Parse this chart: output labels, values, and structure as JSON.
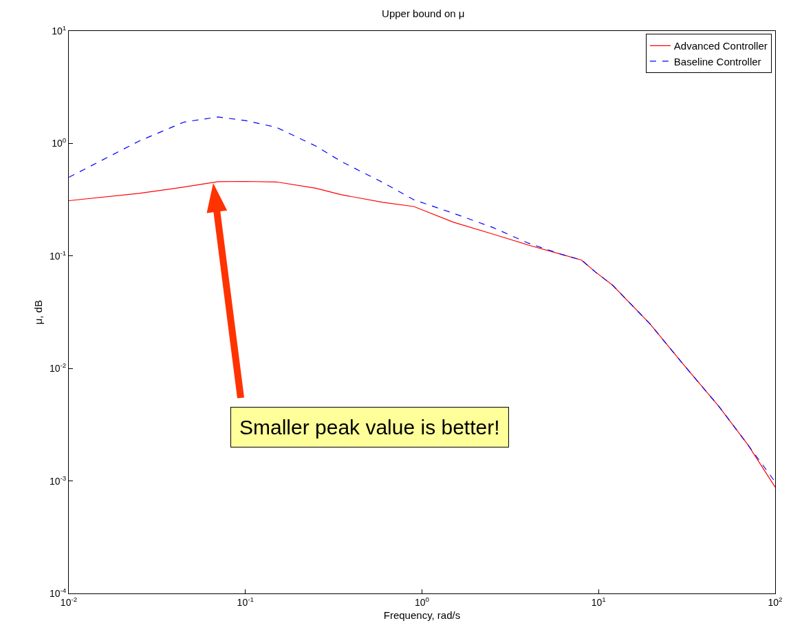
{
  "chart_data": {
    "type": "line",
    "title": "Upper bound on μ",
    "xlabel": "Frequency, rad/s",
    "ylabel": "μ, dB",
    "log": "xy",
    "grid": false,
    "legend": "top right",
    "marker": "none",
    "xlim": [
      0.01,
      100
    ],
    "ylim": [
      0.0001,
      10
    ],
    "xticks": [
      {
        "value": 0.01,
        "label": "10$^{-2}$"
      },
      {
        "value": 0.1,
        "label": "10$^{-1}$"
      },
      {
        "value": 1,
        "label": "10$^{0}$"
      },
      {
        "value": 10,
        "label": "10$^{1}$"
      },
      {
        "value": 100,
        "label": "10$^{2}$"
      }
    ],
    "yticks": [
      {
        "value": 0.0001,
        "label": "10$^{-4}$"
      },
      {
        "value": 0.001,
        "label": "10$^{-3}$"
      },
      {
        "value": 0.01,
        "label": "10$^{-2}$"
      },
      {
        "value": 0.1,
        "label": "10$^{-1}$"
      },
      {
        "value": 1,
        "label": "10$^{0}$"
      },
      {
        "value": 10,
        "label": "10$^{1}$"
      }
    ],
    "series": [
      {
        "name": "Advanced Controller",
        "color": "#ff0000",
        "line_style": "solid",
        "x": [
          0.01,
          0.025,
          0.045,
          0.07,
          0.1,
          0.15,
          0.25,
          0.35,
          0.6,
          0.9,
          1.5,
          2.5,
          4,
          6.2,
          8,
          9.6,
          12,
          19.5,
          30,
          48,
          70,
          100
        ],
        "values": [
          0.31,
          0.36,
          0.41,
          0.457,
          0.46,
          0.455,
          0.4,
          0.35,
          0.3,
          0.275,
          0.2,
          0.157,
          0.125,
          0.103,
          0.092,
          0.072,
          0.055,
          0.025,
          0.011,
          0.0046,
          0.0021,
          0.00088
        ]
      },
      {
        "name": "Baseline Controller",
        "color": "#0000ff",
        "line_style": "dashed",
        "x": [
          0.01,
          0.025,
          0.045,
          0.07,
          0.1,
          0.15,
          0.25,
          0.35,
          0.6,
          0.9,
          1.5,
          2.5,
          4,
          6.2,
          8,
          9.6,
          12,
          19.5,
          30,
          48,
          70,
          100
        ],
        "values": [
          0.5,
          1.05,
          1.55,
          1.72,
          1.6,
          1.39,
          0.95,
          0.69,
          0.45,
          0.316,
          0.24,
          0.18,
          0.13,
          0.103,
          0.092,
          0.072,
          0.055,
          0.025,
          0.011,
          0.0046,
          0.0021,
          0.00098
        ]
      }
    ],
    "annotations": [
      "Smaller peak value is better!"
    ]
  }
}
